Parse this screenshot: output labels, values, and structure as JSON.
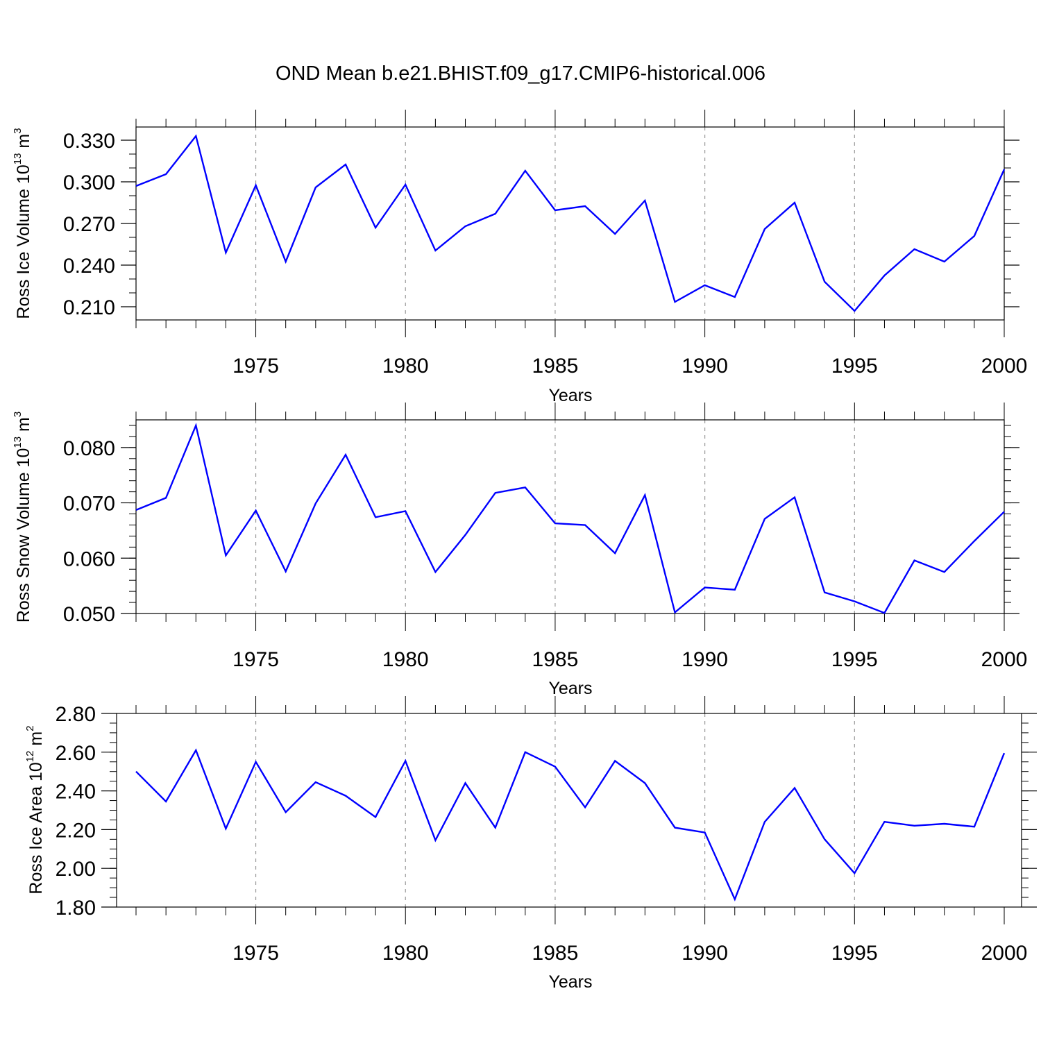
{
  "title": "OND Mean b.e21.BHIST.f09_g17.CMIP6-historical.006",
  "colors": {
    "line": "#0000ff",
    "axis": "#000000",
    "grid": "#999999"
  },
  "chart_data": [
    {
      "type": "line",
      "title": "OND Mean b.e21.BHIST.f09_g17.CMIP6-historical.006",
      "xlabel": "Years",
      "ylabel": "Ross Ice Volume 10",
      "ylabel_exp": "13",
      "ylabel_unit": " m",
      "ylabel_unit_exp": "3",
      "xlim": [
        1971,
        2000
      ],
      "ylim": [
        0.2005,
        0.3395
      ],
      "yticks": [
        0.21,
        0.24,
        0.27,
        0.3,
        0.33
      ],
      "ytick_labels": [
        "0.210",
        "0.240",
        "0.270",
        "0.300",
        "0.330"
      ],
      "yminor_step": 0.01,
      "xticks": [
        1975,
        1980,
        1985,
        1990,
        1995,
        2000
      ],
      "xtick_labels": [
        "1975",
        "1980",
        "1985",
        "1990",
        "1995",
        "2000"
      ],
      "grid_x": true,
      "x": [
        1971,
        1972,
        1973,
        1974,
        1975,
        1976,
        1977,
        1978,
        1979,
        1980,
        1981,
        1982,
        1983,
        1984,
        1985,
        1986,
        1987,
        1988,
        1989,
        1990,
        1991,
        1992,
        1993,
        1994,
        1995,
        1996,
        1997,
        1998,
        1999,
        2000
      ],
      "series": [
        {
          "name": "Ross Ice Volume",
          "values": [
            0.297,
            0.3055,
            0.333,
            0.249,
            0.2975,
            0.2425,
            0.296,
            0.3125,
            0.267,
            0.298,
            0.2505,
            0.268,
            0.277,
            0.308,
            0.2795,
            0.2825,
            0.2625,
            0.2865,
            0.2135,
            0.2255,
            0.217,
            0.266,
            0.285,
            0.228,
            0.207,
            0.2325,
            0.2515,
            0.2425,
            0.261,
            0.309
          ]
        }
      ]
    },
    {
      "type": "line",
      "xlabel": "Years",
      "ylabel": "Ross Snow Volume 10",
      "ylabel_exp": "13",
      "ylabel_unit": " m",
      "ylabel_unit_exp": "3",
      "xlim": [
        1971,
        2000
      ],
      "ylim": [
        0.05,
        0.085
      ],
      "yticks": [
        0.05,
        0.06,
        0.07,
        0.08
      ],
      "ytick_labels": [
        "0.050",
        "0.060",
        "0.070",
        "0.080"
      ],
      "yminor_step": 0.002,
      "xticks": [
        1975,
        1980,
        1985,
        1990,
        1995,
        2000
      ],
      "xtick_labels": [
        "1975",
        "1980",
        "1985",
        "1990",
        "1995",
        "2000"
      ],
      "grid_x": true,
      "x": [
        1971,
        1972,
        1973,
        1974,
        1975,
        1976,
        1977,
        1978,
        1979,
        1980,
        1981,
        1982,
        1983,
        1984,
        1985,
        1986,
        1987,
        1988,
        1989,
        1990,
        1991,
        1992,
        1993,
        1994,
        1995,
        1996,
        1997,
        1998,
        1999,
        2000
      ],
      "series": [
        {
          "name": "Ross Snow Volume",
          "values": [
            0.0687,
            0.0709,
            0.084,
            0.0605,
            0.0686,
            0.0576,
            0.0699,
            0.0787,
            0.0674,
            0.0685,
            0.0575,
            0.0642,
            0.0718,
            0.0728,
            0.0663,
            0.066,
            0.0609,
            0.0714,
            0.0502,
            0.0547,
            0.0543,
            0.0671,
            0.071,
            0.0538,
            0.0522,
            0.0501,
            0.0596,
            0.0575,
            0.0631,
            0.0684
          ]
        }
      ]
    },
    {
      "type": "line",
      "xlabel": "Years",
      "ylabel": "Ross Ice Area 10",
      "ylabel_exp": "12",
      "ylabel_unit": " m",
      "ylabel_unit_exp": "2",
      "xlim": [
        1971,
        2000
      ],
      "ylim": [
        1.8,
        2.8
      ],
      "yticks": [
        1.8,
        2.0,
        2.2,
        2.4,
        2.6,
        2.8
      ],
      "ytick_labels": [
        "1.80",
        "2.00",
        "2.20",
        "2.40",
        "2.60",
        "2.80"
      ],
      "yminor_step": 0.05,
      "xticks": [
        1975,
        1980,
        1985,
        1990,
        1995,
        2000
      ],
      "xtick_labels": [
        "1975",
        "1980",
        "1985",
        "1990",
        "1995",
        "2000"
      ],
      "grid_x": true,
      "x": [
        1971,
        1972,
        1973,
        1974,
        1975,
        1976,
        1977,
        1978,
        1979,
        1980,
        1981,
        1982,
        1983,
        1984,
        1985,
        1986,
        1987,
        1988,
        1989,
        1990,
        1991,
        1992,
        1993,
        1994,
        1995,
        1996,
        1997,
        1998,
        1999,
        2000
      ],
      "series": [
        {
          "name": "Ross Ice Area",
          "values": [
            2.5,
            2.345,
            2.61,
            2.205,
            2.55,
            2.29,
            2.445,
            2.375,
            2.265,
            2.555,
            2.145,
            2.44,
            2.21,
            2.6,
            2.525,
            2.315,
            2.555,
            2.44,
            2.21,
            2.185,
            1.84,
            2.24,
            2.415,
            2.15,
            1.975,
            2.24,
            2.22,
            2.23,
            2.215,
            2.595
          ]
        }
      ]
    }
  ]
}
